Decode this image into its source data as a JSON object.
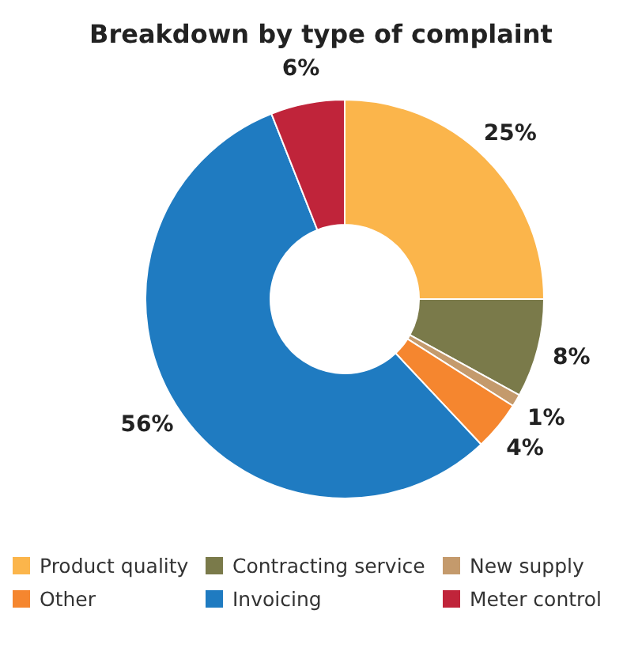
{
  "chart_data": {
    "type": "donut",
    "title": "Breakdown by type of complaint",
    "categories": [
      "Product quality",
      "Contracting service",
      "New supply",
      "Other",
      "Invoicing",
      "Meter control"
    ],
    "values": [
      25,
      8,
      1,
      4,
      56,
      6
    ],
    "colors": [
      "#fbb54b",
      "#7a7a4a",
      "#c49a6c",
      "#f5862f",
      "#1f7bc1",
      "#c0243a"
    ],
    "value_labels": [
      "25%",
      "8%",
      "1%",
      "4%",
      "56%",
      "6%"
    ],
    "legend": "bottom"
  }
}
